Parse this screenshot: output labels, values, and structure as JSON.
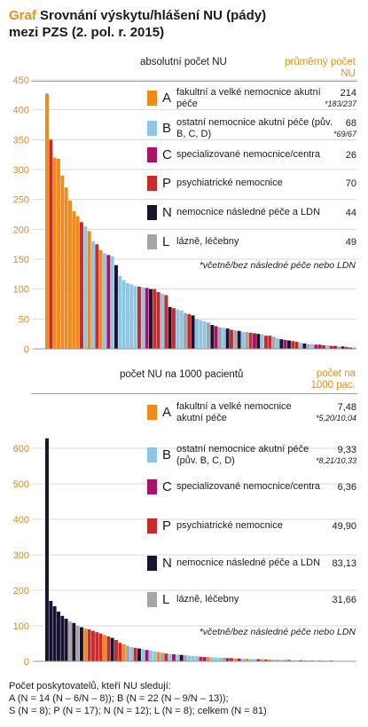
{
  "title": {
    "prefix": "Graf",
    "line1": "Srovnání výskytu/hlášení NU (pády)",
    "line2": "mezi PZS (2. pol. r. 2015)"
  },
  "colors": {
    "A": "#ef8a1f",
    "B": "#8ec6e4",
    "C": "#a8136a",
    "P": "#c62b2e",
    "N": "#1a1330",
    "L": "#a6a6a6",
    "accent": "#e8901e"
  },
  "legend_names": {
    "A": "fakultní a velké nemocnice akutní péče",
    "B": "ostatní nemocnice akutní péče (pův. B, C, D)",
    "C": "specializované nemocnice/centra",
    "P": "psychiatrické nemocnice",
    "N": "nemocnice následné péče a LDN",
    "L": "lázně, léčebny"
  },
  "panel1": {
    "label": "absolutní počet NU",
    "avg_header": "průměrný počet NU",
    "legend": [
      {
        "letter": "A",
        "value": "214",
        "sub": "*183/237"
      },
      {
        "letter": "B",
        "value": "68",
        "sub": "*69/67"
      },
      {
        "letter": "C",
        "value": "26",
        "sub": ""
      },
      {
        "letter": "P",
        "value": "70",
        "sub": ""
      },
      {
        "letter": "N",
        "value": "44",
        "sub": ""
      },
      {
        "letter": "L",
        "value": "49",
        "sub": ""
      }
    ],
    "note": "*včetně/bez následné péče nebo LDN"
  },
  "panel2": {
    "label": "počet NU na 1000 pacientů",
    "avg_header": "počet na 1000 pac.",
    "legend": [
      {
        "letter": "A",
        "value": "7,48",
        "sub": "*5,20/10,04"
      },
      {
        "letter": "B",
        "value": "9,33",
        "sub": "*8,21/10,33"
      },
      {
        "letter": "C",
        "value": "6,36",
        "sub": ""
      },
      {
        "letter": "P",
        "value": "49,90",
        "sub": ""
      },
      {
        "letter": "N",
        "value": "83,13",
        "sub": ""
      },
      {
        "letter": "L",
        "value": "31,66",
        "sub": ""
      }
    ],
    "note": "*včetně/bez následné péče nebo LDN"
  },
  "footer": {
    "line1": "Počet poskytovatelů, kteří NU sledují:",
    "line2": "A (N = 14 (N – 6/N – 8)); B (N = 22 (N – 9/N – 13));",
    "line3": "S (N = 8); P (N = 17); N (N = 12); L (N = 8); celkem (N = 81)"
  },
  "chart_data": [
    {
      "type": "bar",
      "ylabel": "absolutní počet NU",
      "ylim": [
        0,
        450
      ],
      "yticks": [
        0,
        50,
        100,
        150,
        200,
        250,
        300,
        350,
        400,
        450
      ],
      "grid": true,
      "series_categories": [
        "A",
        "P",
        "A",
        "A",
        "A",
        "A",
        "A",
        "A",
        "A",
        "P",
        "B",
        "A",
        "B",
        "P",
        "A",
        "B",
        "C",
        "B",
        "N",
        "B",
        "B",
        "B",
        "B",
        "B",
        "P",
        "B",
        "C",
        "N",
        "P",
        "P",
        "B",
        "P",
        "N",
        "P",
        "B",
        "B",
        "L",
        "P",
        "N",
        "B",
        "B",
        "B",
        "L",
        "N",
        "C",
        "L",
        "B",
        "N",
        "P",
        "L",
        "N",
        "B",
        "L",
        "P",
        "C",
        "N",
        "B",
        "P",
        "P",
        "L",
        "B",
        "N",
        "C",
        "N",
        "P",
        "P",
        "B",
        "N",
        "L",
        "B",
        "C",
        "C",
        "P",
        "B",
        "C",
        "C",
        "L",
        "N",
        "P",
        "N",
        "L"
      ],
      "values": [
        427,
        350,
        320,
        318,
        290,
        270,
        248,
        230,
        222,
        212,
        205,
        197,
        180,
        175,
        165,
        160,
        157,
        155,
        140,
        122,
        115,
        110,
        108,
        105,
        104,
        103,
        102,
        100,
        100,
        95,
        92,
        90,
        70,
        68,
        66,
        64,
        60,
        58,
        56,
        50,
        48,
        46,
        44,
        40,
        38,
        36,
        35,
        34,
        32,
        31,
        30,
        28,
        28,
        27,
        26,
        25,
        24,
        22,
        22,
        20,
        18,
        16,
        15,
        14,
        13,
        12,
        10,
        9,
        8,
        8,
        7,
        7,
        6,
        6,
        5,
        5,
        4,
        4,
        3,
        2,
        2
      ]
    },
    {
      "type": "bar",
      "ylabel": "počet NU na 1000 pacientů",
      "ylim": [
        0,
        650
      ],
      "yticks": [
        0,
        100,
        200,
        300,
        400,
        500,
        600
      ],
      "grid": true,
      "series_categories": [
        "N",
        "N",
        "N",
        "N",
        "N",
        "N",
        "L",
        "N",
        "L",
        "N",
        "A",
        "P",
        "P",
        "P",
        "P",
        "A",
        "P",
        "N",
        "P",
        "P",
        "A",
        "L",
        "B",
        "P",
        "N",
        "B",
        "C",
        "B",
        "B",
        "A",
        "L",
        "P",
        "B",
        "C",
        "B",
        "N",
        "L",
        "B",
        "B",
        "B",
        "P",
        "C",
        "A",
        "B",
        "B",
        "B",
        "L",
        "C",
        "P",
        "A",
        "C",
        "B",
        "A",
        "B",
        "B",
        "C",
        "A",
        "P",
        "A",
        "B",
        "A",
        "B",
        "A",
        "P",
        "L",
        "B",
        "C",
        "A",
        "B",
        "C",
        "B",
        "P",
        "A",
        "B",
        "N",
        "A",
        "C",
        "B",
        "P",
        "A",
        "B"
      ],
      "values": [
        628,
        170,
        155,
        140,
        128,
        120,
        112,
        108,
        100,
        96,
        92,
        90,
        86,
        82,
        78,
        74,
        70,
        66,
        60,
        52,
        48,
        44,
        40,
        38,
        36,
        34,
        32,
        30,
        28,
        26,
        24,
        22,
        21,
        20,
        19,
        18,
        17,
        16,
        15,
        14,
        13,
        12,
        12,
        11,
        11,
        10,
        10,
        9,
        9,
        8,
        8,
        7,
        7,
        7,
        6,
        6,
        6,
        5,
        5,
        5,
        4,
        4,
        4,
        4,
        3,
        3,
        3,
        3,
        3,
        2,
        2,
        2,
        2,
        2,
        2,
        1,
        1,
        1,
        1,
        1,
        1
      ]
    }
  ]
}
